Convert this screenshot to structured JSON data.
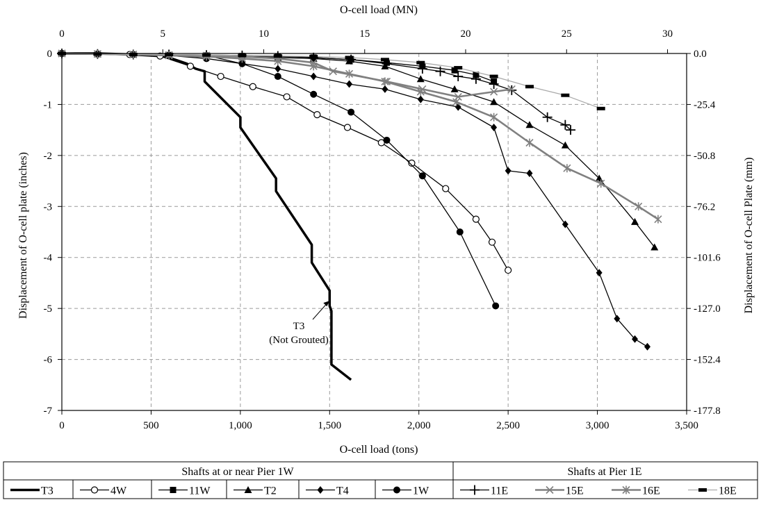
{
  "chart_data": {
    "type": "line",
    "title": "",
    "xlabel": "O-cell load (tons)",
    "x2label": "O-cell load (MN)",
    "ylabel": "Displacement of O-cell plate (inches)",
    "y2label": "Displacement of O-cell Plate (mm)",
    "xlim": [
      0,
      3500
    ],
    "x2lim": [
      0,
      30
    ],
    "ylim": [
      -7,
      0
    ],
    "xticks": [
      "0",
      "500",
      "1,000",
      "1,500",
      "2,000",
      "2,500",
      "3,000",
      "3,500"
    ],
    "x2ticks": [
      "0",
      "5",
      "10",
      "15",
      "20",
      "25",
      "30"
    ],
    "yticks": [
      "0",
      "-1",
      "-2",
      "-3",
      "-4",
      "-5",
      "-6",
      "-7"
    ],
    "y2ticks": [
      "0.0",
      "-25.4",
      "-50.8",
      "-76.2",
      "-101.6",
      "-127.0",
      "-152.4",
      "-177.8"
    ],
    "grid": true,
    "annotation": {
      "text_line1": "T3",
      "text_line2": "(Not Grouted)",
      "points_to": [
        1500,
        -4.85
      ]
    },
    "legend": {
      "placement": "bottom",
      "group1": "Shafts at or near Pier 1W",
      "group2": "Shafts at  Pier 1E"
    },
    "series": [
      {
        "name": "T3",
        "group": 1,
        "color": "#000000",
        "marker": "none",
        "x": [
          0,
          200,
          400,
          550,
          600,
          700,
          750,
          800,
          800,
          1000,
          1000,
          1200,
          1200,
          1400,
          1400,
          1500,
          1500,
          1510,
          1510,
          1620
        ],
        "y": [
          0,
          0,
          -0.02,
          -0.05,
          -0.08,
          -0.2,
          -0.3,
          -0.35,
          -0.55,
          -1.25,
          -1.45,
          -2.45,
          -2.7,
          -3.75,
          -4.1,
          -4.65,
          -4.95,
          -5.05,
          -6.1,
          -6.4
        ]
      },
      {
        "name": "4W",
        "group": 1,
        "color": "#000000",
        "marker": "circle-open",
        "x": [
          0,
          200,
          380,
          550,
          720,
          890,
          1070,
          1260,
          1430,
          1600,
          1790,
          1960,
          2150,
          2320,
          2410,
          2500
        ],
        "y": [
          0,
          -0.01,
          -0.02,
          -0.05,
          -0.25,
          -0.45,
          -0.65,
          -0.85,
          -1.2,
          -1.45,
          -1.75,
          -2.15,
          -2.65,
          -3.25,
          -3.7,
          -4.25
        ]
      },
      {
        "name": "11W",
        "group": 1,
        "color": "#000000",
        "marker": "square",
        "x": [
          0,
          200,
          400,
          600,
          810,
          1010,
          1210,
          1410,
          1620,
          1820,
          2020,
          2200,
          2320,
          2420
        ],
        "y": [
          0,
          -0.01,
          -0.02,
          -0.03,
          -0.04,
          -0.05,
          -0.06,
          -0.08,
          -0.12,
          -0.18,
          -0.25,
          -0.33,
          -0.42,
          -0.55
        ]
      },
      {
        "name": "T2",
        "group": 1,
        "color": "#000000",
        "marker": "triangle",
        "x": [
          0,
          200,
          400,
          600,
          810,
          1010,
          1210,
          1410,
          1610,
          1810,
          2010,
          2200,
          2420,
          2620,
          2820,
          3010,
          3210,
          3320
        ],
        "y": [
          0,
          -0.01,
          -0.02,
          -0.03,
          -0.04,
          -0.06,
          -0.08,
          -0.1,
          -0.15,
          -0.25,
          -0.5,
          -0.7,
          -0.95,
          -1.4,
          -1.8,
          -2.45,
          -3.3,
          -3.8
        ]
      },
      {
        "name": "T4",
        "group": 1,
        "color": "#000000",
        "marker": "diamond",
        "x": [
          0,
          200,
          400,
          600,
          810,
          1010,
          1210,
          1410,
          1610,
          1810,
          2010,
          2220,
          2420,
          2500,
          2620,
          2820,
          3010,
          3110,
          3210,
          3280
        ],
        "y": [
          0,
          -0.01,
          -0.02,
          -0.03,
          -0.04,
          -0.2,
          -0.3,
          -0.45,
          -0.6,
          -0.7,
          -0.9,
          -1.05,
          -1.45,
          -2.3,
          -2.35,
          -3.35,
          -4.3,
          -5.2,
          -5.6,
          -5.75
        ]
      },
      {
        "name": "1W",
        "group": 1,
        "color": "#000000",
        "marker": "circle",
        "x": [
          0,
          200,
          400,
          600,
          810,
          1010,
          1210,
          1410,
          1620,
          1820,
          2020,
          2230,
          2430
        ],
        "y": [
          0,
          -0.01,
          -0.02,
          -0.04,
          -0.1,
          -0.2,
          -0.45,
          -0.8,
          -1.15,
          -1.7,
          -2.4,
          -3.5,
          -4.95
        ]
      },
      {
        "name": "11E",
        "group": 2,
        "color": "#000000",
        "marker": "plus",
        "x": [
          0,
          200,
          400,
          600,
          810,
          1010,
          1210,
          1410,
          1620,
          1820,
          2020,
          2120,
          2220,
          2320,
          2420,
          2520,
          2720,
          2820,
          2850
        ],
        "y": [
          0,
          -0.01,
          -0.02,
          -0.02,
          -0.03,
          -0.04,
          -0.05,
          -0.08,
          -0.12,
          -0.2,
          -0.3,
          -0.35,
          -0.45,
          -0.5,
          -0.6,
          -0.72,
          -1.25,
          -1.4,
          -1.5
        ]
      },
      {
        "name": "15E",
        "group": 2,
        "color": "#808080",
        "marker": "x",
        "x": [
          0,
          200,
          400,
          600,
          810,
          1010,
          1210,
          1410,
          1520,
          1820,
          2020,
          2220,
          2420,
          2520
        ],
        "y": [
          0,
          -0.01,
          -0.02,
          -0.03,
          -0.04,
          -0.06,
          -0.1,
          -0.18,
          -0.35,
          -0.55,
          -0.7,
          -0.85,
          -0.75,
          -0.7
        ]
      },
      {
        "name": "16E",
        "group": 2,
        "color": "#808080",
        "marker": "star",
        "x": [
          0,
          200,
          400,
          600,
          810,
          1010,
          1210,
          1410,
          1610,
          1810,
          2010,
          2210,
          2420,
          2620,
          2830,
          3020,
          3230,
          3340
        ],
        "y": [
          0,
          -0.01,
          -0.02,
          -0.04,
          -0.06,
          -0.1,
          -0.15,
          -0.25,
          -0.4,
          -0.55,
          -0.75,
          -0.95,
          -1.25,
          -1.75,
          -2.25,
          -2.55,
          -3.0,
          -3.25
        ]
      },
      {
        "name": "18E",
        "group": 2,
        "color": "#000000",
        "linecolor": "#aaaaaa",
        "marker": "dash",
        "x": [
          0,
          200,
          400,
          600,
          810,
          1010,
          1210,
          1410,
          1610,
          1810,
          2010,
          2220,
          2420,
          2620,
          2820,
          3020
        ],
        "y": [
          0,
          -0.01,
          -0.02,
          -0.02,
          -0.03,
          -0.04,
          -0.05,
          -0.06,
          -0.08,
          -0.12,
          -0.18,
          -0.28,
          -0.45,
          -0.65,
          -0.82,
          -1.08
        ]
      }
    ]
  }
}
